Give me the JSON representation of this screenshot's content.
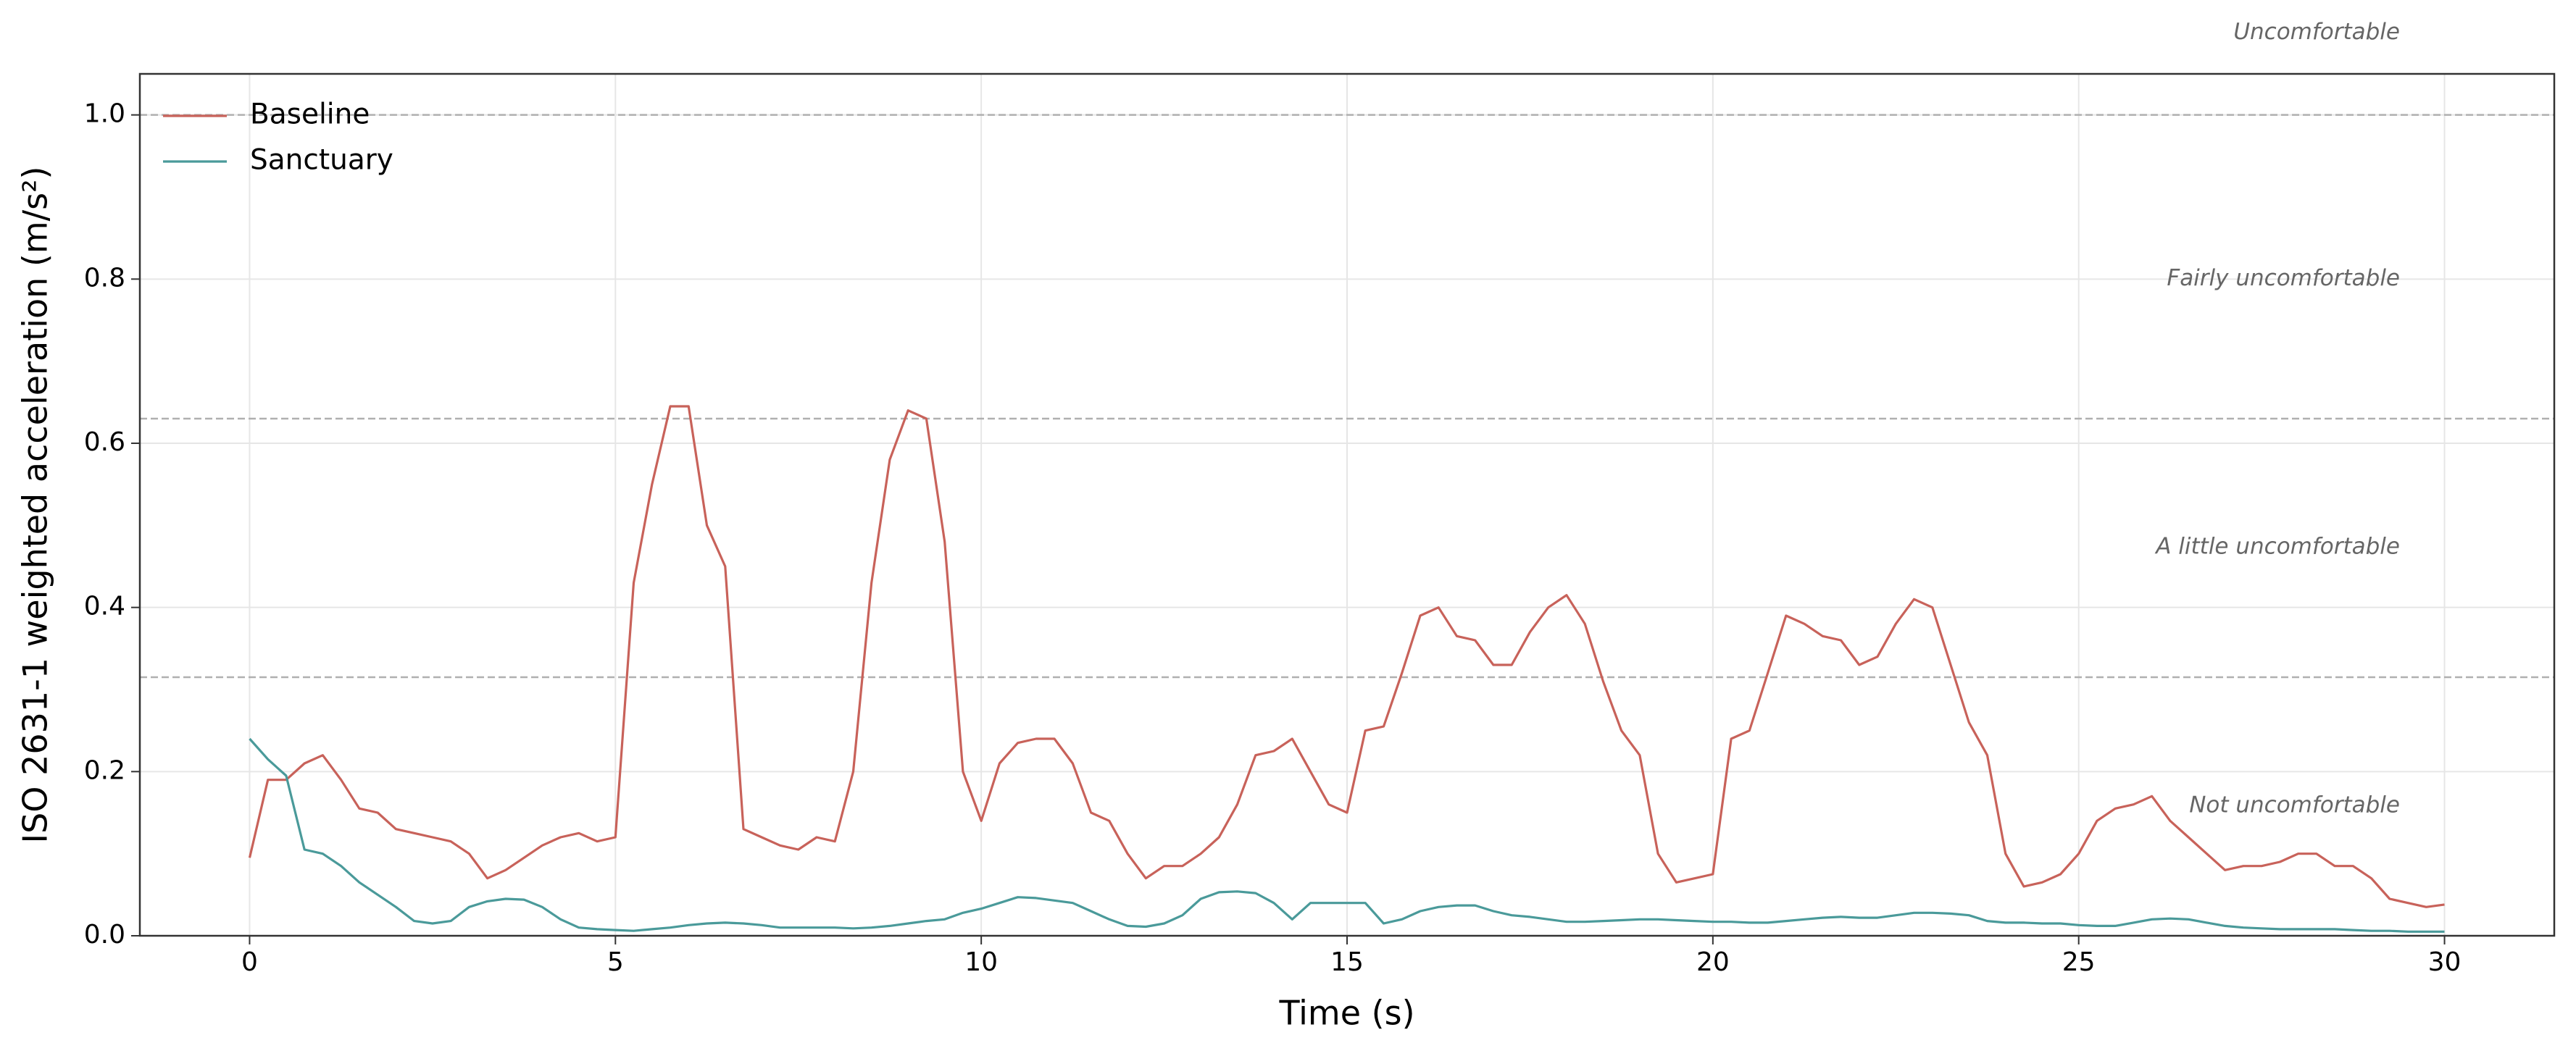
{
  "chart_data": {
    "type": "line",
    "xlabel": "Time (s)",
    "ylabel": "ISO 2631-1 weighted acceleration (m/s²)",
    "x": [
      0,
      0.25,
      0.5,
      0.75,
      1,
      1.25,
      1.5,
      1.75,
      2,
      2.25,
      2.5,
      2.75,
      3,
      3.25,
      3.5,
      3.75,
      4,
      4.25,
      4.5,
      4.75,
      5,
      5.25,
      5.5,
      5.75,
      6,
      6.25,
      6.5,
      6.75,
      7,
      7.25,
      7.5,
      7.75,
      8,
      8.25,
      8.5,
      8.75,
      9,
      9.25,
      9.5,
      9.75,
      10,
      10.25,
      10.5,
      10.75,
      11,
      11.25,
      11.5,
      11.75,
      12,
      12.25,
      12.5,
      12.75,
      13,
      13.25,
      13.5,
      13.75,
      14,
      14.25,
      14.5,
      14.75,
      15,
      15.25,
      15.5,
      15.75,
      16,
      16.25,
      16.5,
      16.75,
      17,
      17.25,
      17.5,
      17.75,
      18,
      18.25,
      18.5,
      18.75,
      19,
      19.25,
      19.5,
      19.75,
      20,
      20.25,
      20.5,
      20.75,
      21,
      21.25,
      21.5,
      21.75,
      22,
      22.25,
      22.5,
      22.75,
      23,
      23.25,
      23.5,
      23.75,
      24,
      24.25,
      24.5,
      24.75,
      25,
      25.25,
      25.5,
      25.75,
      26,
      26.25,
      26.5,
      26.75,
      27,
      27.25,
      27.5,
      27.75,
      28,
      28.25,
      28.5,
      28.75,
      29,
      29.25,
      29.5,
      29.75,
      30
    ],
    "series": [
      {
        "name": "Baseline",
        "color": "#c8625a",
        "values": [
          0.095,
          0.19,
          0.19,
          0.21,
          0.22,
          0.19,
          0.155,
          0.15,
          0.13,
          0.125,
          0.12,
          0.115,
          0.1,
          0.07,
          0.08,
          0.095,
          0.11,
          0.12,
          0.125,
          0.115,
          0.12,
          0.43,
          0.55,
          0.645,
          0.645,
          0.5,
          0.45,
          0.13,
          0.12,
          0.11,
          0.105,
          0.12,
          0.115,
          0.2,
          0.43,
          0.58,
          0.64,
          0.63,
          0.48,
          0.2,
          0.14,
          0.21,
          0.235,
          0.24,
          0.24,
          0.21,
          0.15,
          0.14,
          0.1,
          0.07,
          0.085,
          0.085,
          0.1,
          0.12,
          0.16,
          0.22,
          0.225,
          0.24,
          0.2,
          0.16,
          0.15,
          0.25,
          0.255,
          0.32,
          0.39,
          0.4,
          0.365,
          0.36,
          0.33,
          0.33,
          0.37,
          0.4,
          0.415,
          0.38,
          0.31,
          0.25,
          0.22,
          0.1,
          0.065,
          0.07,
          0.075,
          0.24,
          0.25,
          0.32,
          0.39,
          0.38,
          0.365,
          0.36,
          0.33,
          0.34,
          0.38,
          0.41,
          0.4,
          0.33,
          0.26,
          0.22,
          0.1,
          0.06,
          0.065,
          0.075,
          0.1,
          0.14,
          0.155,
          0.16,
          0.17,
          0.14,
          0.12,
          0.1,
          0.08,
          0.085,
          0.085,
          0.09,
          0.1,
          0.1,
          0.085,
          0.085,
          0.07,
          0.045,
          0.04,
          0.035,
          0.038
        ]
      },
      {
        "name": "Sanctuary",
        "color": "#4a9a9a",
        "values": [
          0.24,
          0.215,
          0.195,
          0.105,
          0.1,
          0.085,
          0.065,
          0.05,
          0.035,
          0.018,
          0.015,
          0.018,
          0.035,
          0.042,
          0.045,
          0.044,
          0.035,
          0.02,
          0.01,
          0.008,
          0.007,
          0.006,
          0.008,
          0.01,
          0.013,
          0.015,
          0.016,
          0.015,
          0.013,
          0.01,
          0.01,
          0.01,
          0.01,
          0.009,
          0.01,
          0.012,
          0.015,
          0.018,
          0.02,
          0.028,
          0.033,
          0.04,
          0.047,
          0.046,
          0.043,
          0.04,
          0.03,
          0.02,
          0.012,
          0.011,
          0.015,
          0.025,
          0.045,
          0.053,
          0.054,
          0.052,
          0.04,
          0.02,
          0.04,
          0.04,
          0.04,
          0.04,
          0.015,
          0.02,
          0.03,
          0.035,
          0.037,
          0.037,
          0.03,
          0.025,
          0.023,
          0.02,
          0.017,
          0.017,
          0.018,
          0.019,
          0.02,
          0.02,
          0.019,
          0.018,
          0.017,
          0.017,
          0.016,
          0.016,
          0.018,
          0.02,
          0.022,
          0.023,
          0.022,
          0.022,
          0.025,
          0.028,
          0.028,
          0.027,
          0.025,
          0.018,
          0.016,
          0.016,
          0.015,
          0.015,
          0.013,
          0.012,
          0.012,
          0.016,
          0.02,
          0.021,
          0.02,
          0.016,
          0.012,
          0.01,
          0.009,
          0.008,
          0.008,
          0.008,
          0.008,
          0.007,
          0.006,
          0.006,
          0.005,
          0.005,
          0.005
        ]
      }
    ],
    "xlim": [
      -1.5,
      31.5
    ],
    "ylim": [
      0,
      1.05
    ],
    "xticks": [
      0,
      5,
      10,
      15,
      20,
      25,
      30
    ],
    "yticks": [
      {
        "value": 0,
        "label": "0.0"
      },
      0.2,
      0.4,
      0.6,
      0.8,
      {
        "value": 1,
        "label": "1.0"
      }
    ],
    "grid": true,
    "legend": "upper left",
    "thresholds": [
      0.315,
      0.63,
      1.0
    ],
    "annotations": [
      {
        "text": "Uncomfortable",
        "y": 1.1
      },
      {
        "text": "Fairly uncomfortable",
        "y": 0.8
      },
      {
        "text": "A little uncomfortable",
        "y": 0.473
      },
      {
        "text": "Not uncomfortable",
        "y": 0.158
      }
    ]
  }
}
